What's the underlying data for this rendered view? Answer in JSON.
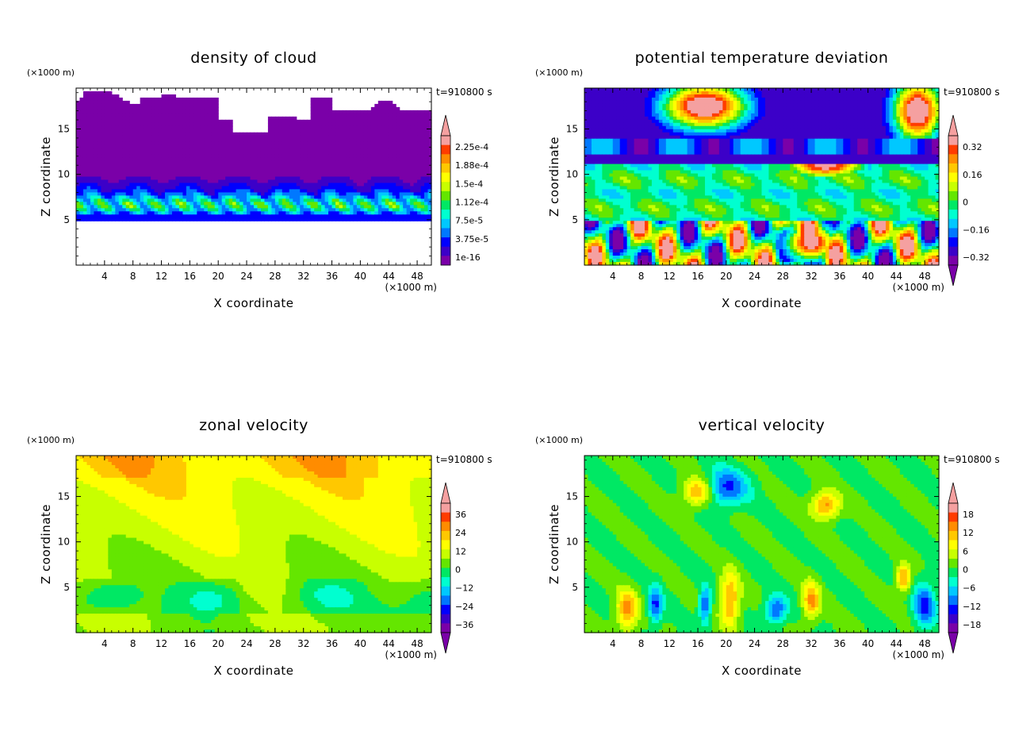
{
  "figure": {
    "panels": [
      {
        "title": "density of cloud",
        "xlabel": "X coordinate",
        "ylabel": "Z coordinate",
        "x_unit": "(×1000 m)",
        "y_unit": "(×1000 m)",
        "time": "t=910800 s",
        "colorbar_labels": [
          "2.25e-4",
          "1.88e-4",
          "1.5e-4",
          "1.12e-4",
          "7.5e-5",
          "3.75e-5",
          "1e-16"
        ]
      },
      {
        "title": "potential temperature deviation",
        "xlabel": "X coordinate",
        "ylabel": "Z coordinate",
        "x_unit": "(×1000 m)",
        "y_unit": "(×1000 m)",
        "time": "t=910800 s",
        "colorbar_labels": [
          "0.32",
          "0.16",
          "0",
          "−0.16",
          "−0.32"
        ]
      },
      {
        "title": "zonal velocity",
        "xlabel": "X coordinate",
        "ylabel": "Z coordinate",
        "x_unit": "(×1000 m)",
        "y_unit": "(×1000 m)",
        "time": "t=910800 s",
        "colorbar_labels": [
          "36",
          "24",
          "12",
          "0",
          "−12",
          "−24",
          "−36"
        ]
      },
      {
        "title": "vertical velocity",
        "xlabel": "X coordinate",
        "ylabel": "Z coordinate",
        "x_unit": "(×1000 m)",
        "y_unit": "(×1000 m)",
        "time": "t=910800 s",
        "colorbar_labels": [
          "18",
          "12",
          "6",
          "0",
          "−6",
          "−12",
          "−18"
        ]
      }
    ],
    "colors": {
      "palette": [
        "#7a00a8",
        "#3c00c8",
        "#0000ff",
        "#0078ff",
        "#00c8ff",
        "#00ffd0",
        "#00e864",
        "#64e600",
        "#c8ff00",
        "#ffff00",
        "#ffc800",
        "#ff8c00",
        "#ff3c00",
        "#f5a0a0"
      ]
    }
  },
  "chart_data": [
    {
      "type": "heatmap",
      "title": "density of cloud",
      "xlabel": "X coordinate",
      "ylabel": "Z coordinate",
      "x_unit": "(×1000 m)",
      "y_unit": "(×1000 m)",
      "xlim": [
        0,
        50
      ],
      "ylim": [
        0,
        19.5
      ],
      "xticks": [
        4,
        8,
        12,
        16,
        20,
        24,
        28,
        32,
        36,
        40,
        44,
        48
      ],
      "yticks": [
        5,
        10,
        15
      ],
      "annotation": "t=910800 s",
      "colorbar": {
        "levels": [
          "2.25e-4",
          "1.88e-4",
          "1.5e-4",
          "1.12e-4",
          "7.5e-5",
          "3.75e-5",
          "1e-16"
        ],
        "extend": "max",
        "min_value": 1e-16,
        "max_value": 0.00025
      },
      "field_summary": "cloud layer between z≈5 and z≈19 (×1000 m); maximum density near z≈6–7"
    },
    {
      "type": "heatmap",
      "title": "potential temperature deviation",
      "xlabel": "X coordinate",
      "ylabel": "Z coordinate",
      "x_unit": "(×1000 m)",
      "y_unit": "(×1000 m)",
      "xlim": [
        0,
        50
      ],
      "ylim": [
        0,
        19.5
      ],
      "xticks": [
        4,
        8,
        12,
        16,
        20,
        24,
        28,
        32,
        36,
        40,
        44,
        48
      ],
      "yticks": [
        5,
        10,
        15
      ],
      "annotation": "t=910800 s",
      "colorbar": {
        "levels": [
          "0.32",
          "0.16",
          "0",
          "−0.16",
          "−0.32"
        ],
        "extend": "both",
        "min_value": -0.4,
        "max_value": 0.4
      },
      "field_summary": "strong negative band near z≈12; positive blobs above z≈14 and below z≈5"
    },
    {
      "type": "heatmap",
      "title": "zonal velocity",
      "xlabel": "X coordinate",
      "ylabel": "Z coordinate",
      "x_unit": "(×1000 m)",
      "y_unit": "(×1000 m)",
      "xlim": [
        0,
        50
      ],
      "ylim": [
        0,
        19.5
      ],
      "xticks": [
        4,
        8,
        12,
        16,
        20,
        24,
        28,
        32,
        36,
        40,
        44,
        48
      ],
      "yticks": [
        5,
        10,
        15
      ],
      "annotation": "t=910800 s",
      "colorbar": {
        "levels": [
          "36",
          "24",
          "12",
          "0",
          "−12",
          "−24",
          "−36"
        ],
        "extend": "both",
        "min_value": -42,
        "max_value": 42
      },
      "field_summary": "positive (≈10–20) at top, ≈0 in middle, slightly negative (≈−5 to −10) at low levels"
    },
    {
      "type": "heatmap",
      "title": "vertical velocity",
      "xlabel": "X coordinate",
      "ylabel": "Z coordinate",
      "x_unit": "(×1000 m)",
      "y_unit": "(×1000 m)",
      "xlim": [
        0,
        50
      ],
      "ylim": [
        0,
        19.5
      ],
      "xticks": [
        4,
        8,
        12,
        16,
        20,
        24,
        28,
        32,
        36,
        40,
        44,
        48
      ],
      "yticks": [
        5,
        10,
        15
      ],
      "annotation": "t=910800 s",
      "colorbar": {
        "levels": [
          "18",
          "12",
          "6",
          "0",
          "−6",
          "−12",
          "−18"
        ],
        "extend": "both",
        "min_value": -21,
        "max_value": 21
      },
      "field_summary": "mostly near 0; updraft cores (≈6–12) at x≈6, 20, 32 below z≈6; downdrafts (≈−12) nearby"
    }
  ]
}
